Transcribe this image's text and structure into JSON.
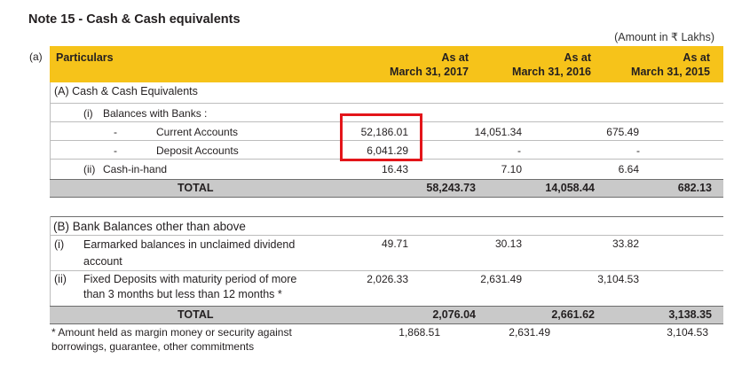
{
  "title": "Note 15 - Cash & Cash equivalents",
  "unit_note": "(Amount in ₹ Lakhs)",
  "section_marker": "(a)",
  "colors": {
    "header_bg": "#f6c31a",
    "total_bg": "#c9c9c9",
    "highlight": "#e3151a"
  },
  "header": {
    "particulars": "Particulars",
    "col1_line1": "As at",
    "col1_line2": "March 31, 2017",
    "col2_line1": "As at",
    "col2_line2": "March 31, 2016",
    "col3_line1": "As at",
    "col3_line2": "March 31, 2015"
  },
  "section_a": {
    "heading": "(A) Cash & Cash Equivalents",
    "banks": {
      "marker": "(i)",
      "label": "Balances with Banks :"
    },
    "current": {
      "dash": "-",
      "label": "Current Accounts",
      "v1": "52,186.01",
      "v2": "14,051.34",
      "v3": "675.49"
    },
    "deposit": {
      "dash": "-",
      "label": "Deposit Accounts",
      "v1": "6,041.29",
      "v2": "-",
      "v3": "-"
    },
    "cash": {
      "marker": "(ii)",
      "label": "Cash-in-hand",
      "v1": "16.43",
      "v2": "7.10",
      "v3": "6.64"
    },
    "total": {
      "label": "TOTAL",
      "v1": "58,243.73",
      "v2": "14,058.44",
      "v3": "682.13"
    }
  },
  "section_b": {
    "heading": "(B) Bank Balances other than above",
    "earmarked": {
      "marker": "(i)",
      "line1": "Earmarked balances in unclaimed dividend",
      "line2": "account",
      "v1": "49.71",
      "v2": "30.13",
      "v3": "33.82"
    },
    "fixed": {
      "marker": "(ii)",
      "line1": "Fixed Deposits with maturity period of more",
      "line2": "than 3 months but less than 12 months *",
      "v1": "2,026.33",
      "v2": "2,631.49",
      "v3": "3,104.53"
    },
    "total": {
      "label": "TOTAL",
      "v1": "2,076.04",
      "v2": "2,661.62",
      "v3": "3,138.35"
    },
    "footnote": {
      "line1": "* Amount held as margin money or security against",
      "line2": "borrowings, guarantee, other commitments",
      "v1": "1,868.51",
      "v2": "2,631.49",
      "v3": "3,104.53"
    }
  }
}
